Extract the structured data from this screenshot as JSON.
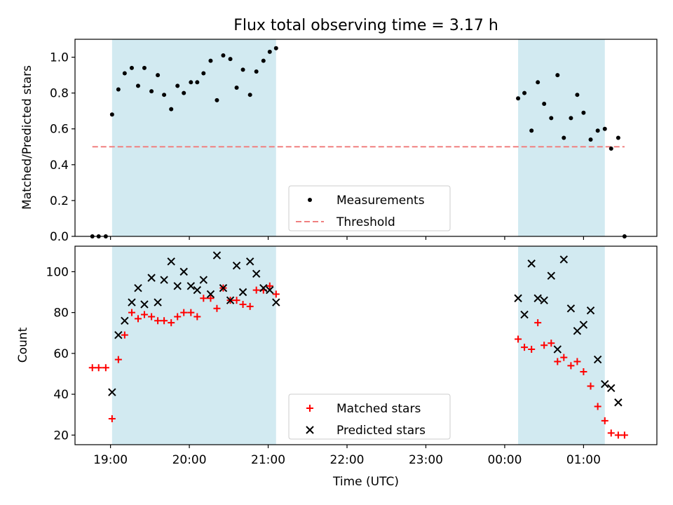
{
  "title": "Flux total observing time = 3.17 h",
  "xlabel": "Time (UTC)",
  "x_ticks": [
    "19:00",
    "20:00",
    "21:00",
    "22:00",
    "23:00",
    "00:00",
    "01:00"
  ],
  "colors": {
    "shade": "#add8e6",
    "measurement": "#000000",
    "threshold": "#f08080",
    "matched": "#ff0000",
    "predicted": "#000000"
  },
  "chart_data": [
    {
      "type": "scatter",
      "ylabel": "Matched/Predicted stars",
      "x_unit": "hours since 18:00 UTC",
      "xlim": [
        18.55,
        25.93
      ],
      "ylim": [
        0,
        1.1
      ],
      "y_ticks": [
        "0.0",
        "0.2",
        "0.4",
        "0.6",
        "0.8",
        "1.0"
      ],
      "shaded_intervals": [
        [
          19.02,
          21.1
        ],
        [
          24.17,
          25.27
        ]
      ],
      "legend": {
        "placement": "lower center",
        "entries": [
          "Measurements",
          "Threshold"
        ]
      },
      "threshold": {
        "name": "Threshold",
        "value": 0.5,
        "x_range": [
          18.77,
          25.52
        ]
      },
      "series": [
        {
          "name": "Measurements",
          "x": [
            18.77,
            18.85,
            18.94,
            19.02,
            19.1,
            19.18,
            19.27,
            19.35,
            19.43,
            19.52,
            19.6,
            19.68,
            19.77,
            19.85,
            19.93,
            20.02,
            20.1,
            20.18,
            20.27,
            20.35,
            20.43,
            20.52,
            20.6,
            20.68,
            20.77,
            20.85,
            20.94,
            21.02,
            21.1,
            24.17,
            24.25,
            24.34,
            24.42,
            24.5,
            24.59,
            24.67,
            24.75,
            24.84,
            24.92,
            25.0,
            25.09,
            25.18,
            25.27,
            25.35,
            25.44,
            25.52
          ],
          "y": [
            0.0,
            0.0,
            0.0,
            0.68,
            0.82,
            0.91,
            0.94,
            0.84,
            0.94,
            0.81,
            0.9,
            0.79,
            0.71,
            0.84,
            0.8,
            0.86,
            0.86,
            0.91,
            0.98,
            0.76,
            1.01,
            0.99,
            0.83,
            0.93,
            0.79,
            0.92,
            0.98,
            1.03,
            1.05,
            0.77,
            0.8,
            0.59,
            0.86,
            0.74,
            0.66,
            0.9,
            0.55,
            0.66,
            0.79,
            0.69,
            0.54,
            0.59,
            0.6,
            0.49,
            0.55,
            0.0
          ]
        }
      ]
    },
    {
      "type": "scatter",
      "ylabel": "Count",
      "x_unit": "hours since 18:00 UTC",
      "xlim": [
        18.55,
        25.93
      ],
      "ylim": [
        15.3,
        112.5
      ],
      "y_ticks": [
        "20",
        "40",
        "60",
        "80",
        "100"
      ],
      "shaded_intervals": [
        [
          19.02,
          21.1
        ],
        [
          24.17,
          25.27
        ]
      ],
      "legend": {
        "placement": "lower center",
        "entries": [
          "Matched stars",
          "Predicted stars"
        ]
      },
      "series": [
        {
          "name": "Matched stars",
          "marker": "plus",
          "x": [
            18.77,
            18.85,
            18.94,
            19.02,
            19.1,
            19.18,
            19.27,
            19.35,
            19.43,
            19.52,
            19.6,
            19.68,
            19.77,
            19.85,
            19.93,
            20.02,
            20.1,
            20.18,
            20.27,
            20.35,
            20.43,
            20.52,
            20.6,
            20.68,
            20.77,
            20.85,
            20.94,
            21.02,
            21.1,
            24.17,
            24.25,
            24.34,
            24.42,
            24.5,
            24.59,
            24.67,
            24.75,
            24.84,
            24.92,
            25.0,
            25.09,
            25.18,
            25.27,
            25.35,
            25.44,
            25.52
          ],
          "y": [
            53,
            53,
            53,
            28,
            57,
            69,
            80,
            77,
            79,
            78,
            76,
            76,
            75,
            78,
            80,
            80,
            78,
            87,
            87,
            82,
            92,
            86,
            86,
            84,
            83,
            91,
            91,
            93,
            89,
            67,
            63,
            62,
            75,
            64,
            65,
            56,
            58,
            54,
            56,
            51,
            44,
            34,
            27,
            21,
            20,
            20
          ]
        },
        {
          "name": "Predicted stars",
          "marker": "x",
          "x": [
            19.02,
            19.1,
            19.18,
            19.27,
            19.35,
            19.43,
            19.52,
            19.6,
            19.68,
            19.77,
            19.85,
            19.93,
            20.02,
            20.1,
            20.18,
            20.27,
            20.35,
            20.43,
            20.52,
            20.6,
            20.68,
            20.77,
            20.85,
            20.94,
            21.02,
            21.1,
            24.17,
            24.25,
            24.34,
            24.42,
            24.5,
            24.59,
            24.67,
            24.75,
            24.84,
            24.92,
            25.0,
            25.09,
            25.18,
            25.27,
            25.35,
            25.44
          ],
          "y": [
            41,
            69,
            76,
            85,
            92,
            84,
            97,
            85,
            96,
            105,
            93,
            100,
            93,
            91,
            96,
            89,
            108,
            92,
            86,
            103,
            90,
            105,
            99,
            92,
            91,
            85,
            87,
            79,
            104,
            87,
            86,
            98,
            62,
            106,
            82,
            71,
            74,
            81,
            57,
            45,
            43,
            36
          ]
        }
      ]
    }
  ]
}
